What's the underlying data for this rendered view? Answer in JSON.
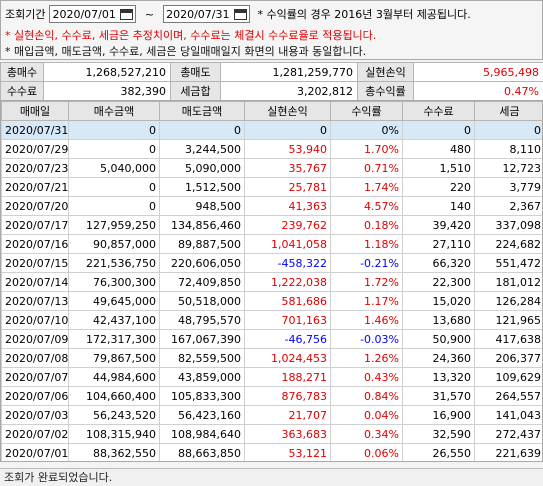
{
  "filter": {
    "period_label": "조회기간",
    "start_date": "2020/07/01",
    "end_date": "2020/07/31",
    "tilde": "~",
    "note": "* 수익률의 경우 2016년 3월부터 제공됩니다.",
    "warning": "* 실현손익, 수수료, 세금은 추정치이며, 수수료는 체결시 수수료율로 적용됩니다.",
    "info": "* 매입금액, 매도금액, 수수료, 세금은 당일매매일지 화면의 내용과 동일합니다."
  },
  "summary": {
    "total_buy_label": "총매수",
    "total_buy": "1,268,527,210",
    "total_sell_label": "총매도",
    "total_sell": "1,281,259,770",
    "realized_pl_label": "실현손익",
    "realized_pl": "5,965,498",
    "fee_label": "수수료",
    "fee": "382,390",
    "tax_label": "세금합",
    "tax": "3,202,812",
    "total_return_label": "총수익률",
    "total_return": "0.47%"
  },
  "table": {
    "columns": [
      "매매일",
      "매수금액",
      "매도금액",
      "실현손익",
      "수익률",
      "수수료",
      "세금"
    ],
    "rows": [
      {
        "date": "2020/07/31",
        "buy": "0",
        "sell": "0",
        "pl": "0",
        "ret": "0%",
        "fee": "0",
        "tax": "0",
        "sign": "zero",
        "selected": true
      },
      {
        "date": "2020/07/29",
        "buy": "0",
        "sell": "3,244,500",
        "pl": "53,940",
        "ret": "1.70%",
        "fee": "480",
        "tax": "8,110",
        "sign": "pos"
      },
      {
        "date": "2020/07/23",
        "buy": "5,040,000",
        "sell": "5,090,000",
        "pl": "35,767",
        "ret": "0.71%",
        "fee": "1,510",
        "tax": "12,723",
        "sign": "pos"
      },
      {
        "date": "2020/07/21",
        "buy": "0",
        "sell": "1,512,500",
        "pl": "25,781",
        "ret": "1.74%",
        "fee": "220",
        "tax": "3,779",
        "sign": "pos"
      },
      {
        "date": "2020/07/20",
        "buy": "0",
        "sell": "948,500",
        "pl": "41,363",
        "ret": "4.57%",
        "fee": "140",
        "tax": "2,367",
        "sign": "pos"
      },
      {
        "date": "2020/07/17",
        "buy": "127,959,250",
        "sell": "134,856,460",
        "pl": "239,762",
        "ret": "0.18%",
        "fee": "39,420",
        "tax": "337,098",
        "sign": "pos"
      },
      {
        "date": "2020/07/16",
        "buy": "90,857,000",
        "sell": "89,887,500",
        "pl": "1,041,058",
        "ret": "1.18%",
        "fee": "27,110",
        "tax": "224,682",
        "sign": "pos"
      },
      {
        "date": "2020/07/15",
        "buy": "221,536,750",
        "sell": "220,606,050",
        "pl": "-458,322",
        "ret": "-0.21%",
        "fee": "66,320",
        "tax": "551,472",
        "sign": "neg"
      },
      {
        "date": "2020/07/14",
        "buy": "76,300,300",
        "sell": "72,409,850",
        "pl": "1,222,038",
        "ret": "1.72%",
        "fee": "22,300",
        "tax": "181,012",
        "sign": "pos"
      },
      {
        "date": "2020/07/13",
        "buy": "49,645,000",
        "sell": "50,518,000",
        "pl": "581,686",
        "ret": "1.17%",
        "fee": "15,020",
        "tax": "126,284",
        "sign": "pos"
      },
      {
        "date": "2020/07/10",
        "buy": "42,437,100",
        "sell": "48,795,570",
        "pl": "701,163",
        "ret": "1.46%",
        "fee": "13,680",
        "tax": "121,965",
        "sign": "pos"
      },
      {
        "date": "2020/07/09",
        "buy": "172,317,300",
        "sell": "167,067,390",
        "pl": "-46,756",
        "ret": "-0.03%",
        "fee": "50,900",
        "tax": "417,638",
        "sign": "neg"
      },
      {
        "date": "2020/07/08",
        "buy": "79,867,500",
        "sell": "82,559,500",
        "pl": "1,024,453",
        "ret": "1.26%",
        "fee": "24,360",
        "tax": "206,377",
        "sign": "pos"
      },
      {
        "date": "2020/07/07",
        "buy": "44,984,600",
        "sell": "43,859,000",
        "pl": "188,271",
        "ret": "0.43%",
        "fee": "13,320",
        "tax": "109,629",
        "sign": "pos"
      },
      {
        "date": "2020/07/06",
        "buy": "104,660,400",
        "sell": "105,833,300",
        "pl": "876,783",
        "ret": "0.84%",
        "fee": "31,570",
        "tax": "264,557",
        "sign": "pos"
      },
      {
        "date": "2020/07/03",
        "buy": "56,243,520",
        "sell": "56,423,160",
        "pl": "21,707",
        "ret": "0.04%",
        "fee": "16,900",
        "tax": "141,043",
        "sign": "pos"
      },
      {
        "date": "2020/07/02",
        "buy": "108,315,940",
        "sell": "108,984,640",
        "pl": "363,683",
        "ret": "0.34%",
        "fee": "32,590",
        "tax": "272,437",
        "sign": "pos"
      },
      {
        "date": "2020/07/01",
        "buy": "88,362,550",
        "sell": "88,663,850",
        "pl": "53,121",
        "ret": "0.06%",
        "fee": "26,550",
        "tax": "221,639",
        "sign": "pos"
      }
    ]
  },
  "status": {
    "text": "조회가 완료되었습니다."
  },
  "colors": {
    "positive": "#e00000",
    "negative": "#0000ff",
    "selected_row": "#d7e8f7"
  }
}
